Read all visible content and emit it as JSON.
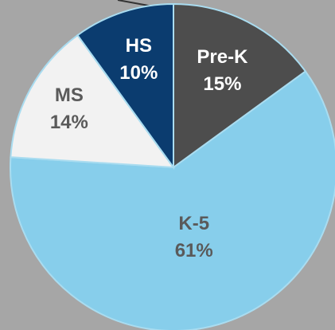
{
  "chart_data": {
    "type": "pie",
    "categories": [
      "Pre-K",
      "K-5",
      "MS",
      "HS"
    ],
    "values": [
      15,
      61,
      14,
      10
    ],
    "value_labels": [
      "15%",
      "61%",
      "14%",
      "10%"
    ],
    "colors": [
      "#4d4d4d",
      "#87ceeb",
      "#f2f2f2",
      "#0b3c6f"
    ],
    "label_colors": [
      "#ffffff",
      "#5a5a5a",
      "#5a5a5a",
      "#ffffff"
    ]
  }
}
